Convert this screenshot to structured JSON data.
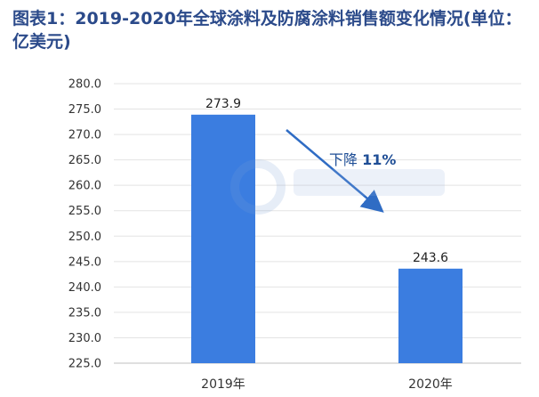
{
  "title": "图表1：2019-2020年全球涂料及防腐涂料销售额变化情况(单位：亿美元)",
  "chart_data": {
    "type": "bar",
    "title": "图表1：2019-2020年全球涂料及防腐涂料销售额变化情况(单位：亿美元)",
    "categories": [
      "2019年",
      "2020年"
    ],
    "values": [
      273.9,
      243.6
    ],
    "data_labels": [
      "273.9",
      "243.6"
    ],
    "ylim": [
      225.0,
      280.0
    ],
    "yticks": [
      "225.0",
      "230.0",
      "235.0",
      "240.0",
      "245.0",
      "250.0",
      "255.0",
      "260.0",
      "265.0",
      "270.0",
      "275.0",
      "280.0"
    ],
    "grid": true,
    "bar_color": "#3b7de0",
    "annotation": {
      "text_prefix": "下降 ",
      "text_value": "11%"
    },
    "arrow_color": "#2f6cc4"
  }
}
